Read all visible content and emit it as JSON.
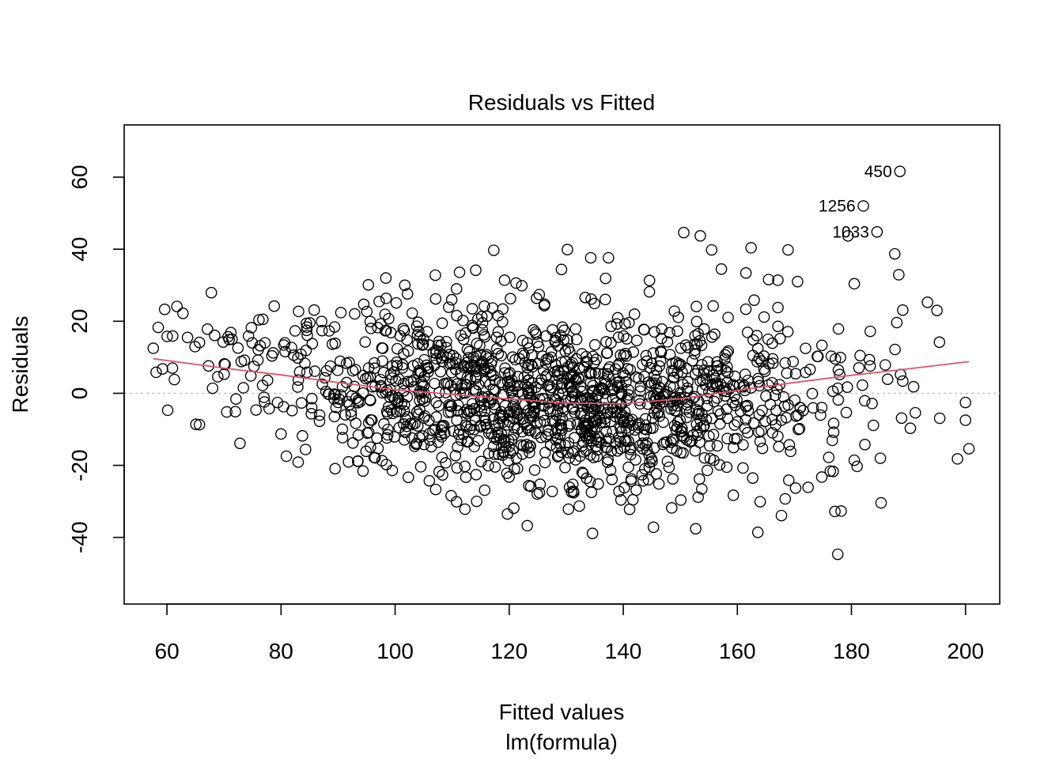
{
  "chart_data": {
    "type": "scatter",
    "title": "Residuals vs Fitted",
    "xlabel": "Fitted values",
    "subtitle": "lm(formula)",
    "ylabel": "Residuals",
    "xlim": [
      52.5,
      206.0
    ],
    "ylim": [
      -58.5,
      74.5
    ],
    "xticks": [
      60,
      80,
      100,
      120,
      140,
      160,
      180,
      200
    ],
    "yticks": [
      -40,
      -20,
      0,
      20,
      40,
      60
    ],
    "xtick_labels": [
      "60",
      "80",
      "100",
      "120",
      "140",
      "160",
      "180",
      "200"
    ],
    "ytick_labels": [
      "-40",
      "-20",
      "0",
      "20",
      "40",
      "60"
    ],
    "grid": false,
    "reference_line_y": 0,
    "colors": {
      "points": "#000000",
      "smooth": "#DF536B",
      "reference": "#BEBEBE"
    },
    "n_points": 1500,
    "labeled_points": [
      {
        "label": "450",
        "x": 188.5,
        "y": 61.6
      },
      {
        "label": "1256",
        "x": 182.1,
        "y": 52.0
      },
      {
        "label": "1033",
        "x": 184.5,
        "y": 44.8
      }
    ],
    "sample_points": [
      [
        57.6,
        12.5
      ],
      [
        59.6,
        23.3
      ],
      [
        61.0,
        15.9
      ],
      [
        61.3,
        3.8
      ],
      [
        62.8,
        22.2
      ],
      [
        63.6,
        15.5
      ],
      [
        65.7,
        14.1
      ],
      [
        65.7,
        -8.7
      ],
      [
        67.1,
        17.8
      ],
      [
        67.3,
        7.6
      ],
      [
        68.0,
        1.4
      ],
      [
        68.9,
        4.6
      ],
      [
        70.2,
        8.0
      ],
      [
        71.4,
        15.0
      ],
      [
        72.0,
        -5.1
      ],
      [
        72.8,
        -13.9
      ],
      [
        74.3,
        15.9
      ],
      [
        74.8,
        18.2
      ],
      [
        76.0,
        12.1
      ],
      [
        77.1,
        -2.4
      ],
      [
        78.8,
        24.2
      ],
      [
        80.0,
        -11.3
      ],
      [
        80.5,
        13.4
      ],
      [
        82.2,
        10.6
      ],
      [
        83.0,
        -19.1
      ],
      [
        84.3,
        -15.6
      ],
      [
        85.8,
        23.1
      ],
      [
        87.2,
        17.4
      ],
      [
        89.4,
        18.4
      ],
      [
        90.5,
        22.4
      ],
      [
        92.6,
        -13.8
      ],
      [
        94.5,
        24.7
      ],
      [
        94.9,
        -16.1
      ],
      [
        95.3,
        30.1
      ],
      [
        97.7,
        -18.7
      ],
      [
        99.5,
        -21.4
      ],
      [
        100.2,
        25.1
      ],
      [
        101.7,
        30.0
      ],
      [
        104.5,
        -20.4
      ],
      [
        106.0,
        -24.3
      ],
      [
        107.1,
        26.2
      ],
      [
        109.4,
        23.9
      ],
      [
        111.3,
        33.6
      ],
      [
        112.4,
        -23.3
      ],
      [
        114.3,
        -30.0
      ],
      [
        115.7,
        -26.9
      ],
      [
        117.3,
        39.7
      ],
      [
        119.6,
        -22.2
      ],
      [
        120.8,
        -31.9
      ],
      [
        121.2,
        30.6
      ],
      [
        124.8,
        26.4
      ],
      [
        125.3,
        -27.6
      ],
      [
        130.2,
        39.9
      ],
      [
        131.3,
        -27.6
      ],
      [
        132.3,
        -31.3
      ],
      [
        134.3,
        37.6
      ],
      [
        134.6,
        -38.9
      ],
      [
        136.9,
        31.9
      ],
      [
        137.4,
        37.6
      ],
      [
        139.6,
        -29.6
      ],
      [
        141.1,
        -32.2
      ],
      [
        143.5,
        -24.3
      ],
      [
        144.6,
        31.3
      ],
      [
        145.3,
        -37.2
      ],
      [
        150.6,
        44.6
      ],
      [
        152.7,
        -37.6
      ],
      [
        153.5,
        43.7
      ],
      [
        155.5,
        39.8
      ],
      [
        157.2,
        34.5
      ],
      [
        159.3,
        -28.3
      ],
      [
        161.5,
        33.4
      ],
      [
        162.4,
        40.4
      ],
      [
        163.6,
        -38.6
      ],
      [
        164.0,
        -30.1
      ],
      [
        167.1,
        31.4
      ],
      [
        168.4,
        -29.3
      ],
      [
        168.9,
        39.8
      ],
      [
        172.4,
        -26.1
      ],
      [
        176.3,
        -21.6
      ],
      [
        177.1,
        -32.8
      ],
      [
        177.6,
        -44.7
      ],
      [
        178.2,
        -32.7
      ],
      [
        179.4,
        43.7
      ],
      [
        180.5,
        30.4
      ],
      [
        181.0,
        -20.3
      ],
      [
        183.3,
        17.2
      ],
      [
        185.2,
        -30.4
      ],
      [
        187.6,
        38.7
      ],
      [
        188.3,
        32.9
      ],
      [
        189.0,
        23.1
      ],
      [
        190.9,
        1.8
      ],
      [
        191.2,
        -5.4
      ],
      [
        195.0,
        23.0
      ],
      [
        198.6,
        -18.2
      ],
      [
        200.6,
        -15.4
      ]
    ],
    "smooth_line": [
      [
        57.6,
        9.6
      ],
      [
        70,
        7.0
      ],
      [
        80,
        5.1
      ],
      [
        90,
        3.0
      ],
      [
        100,
        1.0
      ],
      [
        110,
        -0.3
      ],
      [
        120,
        -1.6
      ],
      [
        130,
        -2.7
      ],
      [
        140,
        -2.9
      ],
      [
        150,
        -1.5
      ],
      [
        160,
        0.8
      ],
      [
        170,
        3.0
      ],
      [
        180,
        5.0
      ],
      [
        190,
        6.8
      ],
      [
        200.6,
        8.8
      ]
    ]
  }
}
